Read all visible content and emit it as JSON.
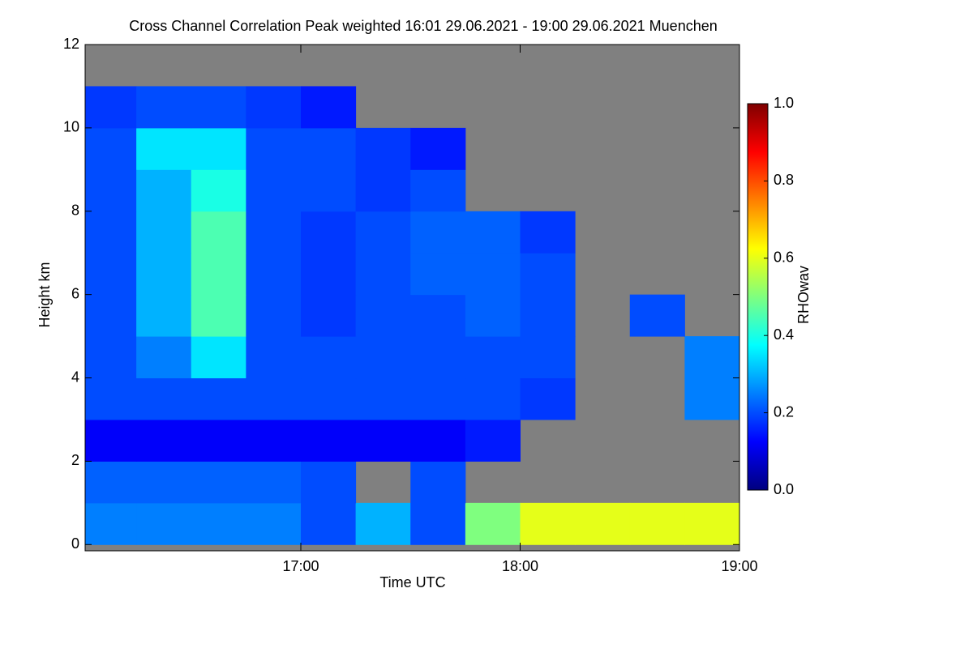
{
  "chart_data": {
    "type": "heatmap",
    "title": "Cross Channel Correlation Peak weighted   16:01 29.06.2021 - 19:00 29.06.2021 Muenchen",
    "x_label": "Time UTC",
    "y_label": "Height km",
    "colorbar_label": "RHOwav",
    "xlim": [
      16.0167,
      19.0
    ],
    "ylim": [
      -0.15,
      12
    ],
    "xticks": [
      {
        "value": 17,
        "label": "17:00"
      },
      {
        "value": 18,
        "label": "18:00"
      },
      {
        "value": 19,
        "label": "19:00"
      }
    ],
    "yticks": [
      0,
      2,
      4,
      6,
      8,
      10,
      12
    ],
    "clim": [
      0,
      1
    ],
    "cticks": [
      {
        "value": 0,
        "label": "0.0"
      },
      {
        "value": 0.2,
        "label": "0.2"
      },
      {
        "value": 0.4,
        "label": "0.4"
      },
      {
        "value": 0.6,
        "label": "0.6"
      },
      {
        "value": 0.8,
        "label": "0.8"
      },
      {
        "value": 1,
        "label": "1.0"
      }
    ],
    "colorscale": [
      "#00007f",
      "#0000ff",
      "#007fff",
      "#00ffff",
      "#7fff7f",
      "#ffff00",
      "#ff7f00",
      "#ff0000",
      "#7f0000"
    ],
    "missing_color": "#808080",
    "x_edges": [
      16.0167,
      16.25,
      16.5,
      16.75,
      17.0,
      17.25,
      17.5,
      17.75,
      18.0,
      18.25,
      18.5,
      18.75,
      19.0
    ],
    "y_edges": [
      0,
      1,
      2,
      3,
      4,
      5,
      6,
      7,
      8,
      9,
      10,
      11,
      12
    ],
    "z": [
      [
        0.25,
        0.25,
        0.25,
        0.25,
        0.2,
        0.3,
        0.2,
        0.5,
        0.6,
        0.6,
        0.6,
        0.6
      ],
      [
        0.22,
        0.22,
        0.22,
        0.22,
        0.2,
        null,
        0.2,
        null,
        null,
        null,
        null,
        null
      ],
      [
        0.12,
        0.12,
        0.12,
        0.12,
        0.12,
        0.12,
        0.12,
        0.15,
        null,
        null,
        null,
        null
      ],
      [
        0.2,
        0.2,
        0.2,
        0.2,
        0.2,
        0.2,
        0.2,
        0.2,
        0.18,
        null,
        null,
        0.25
      ],
      [
        0.2,
        0.25,
        0.35,
        0.2,
        0.2,
        0.2,
        0.2,
        0.2,
        0.2,
        null,
        null,
        0.25
      ],
      [
        0.2,
        0.3,
        0.45,
        0.2,
        0.18,
        0.2,
        0.2,
        0.22,
        0.2,
        null,
        0.2,
        null
      ],
      [
        0.2,
        0.3,
        0.45,
        0.2,
        0.18,
        0.2,
        0.22,
        0.22,
        0.2,
        null,
        null,
        null
      ],
      [
        0.2,
        0.3,
        0.45,
        0.2,
        0.18,
        0.2,
        0.22,
        0.22,
        0.18,
        null,
        null,
        null
      ],
      [
        0.2,
        0.3,
        0.4,
        0.2,
        0.2,
        0.18,
        0.2,
        null,
        null,
        null,
        null,
        null
      ],
      [
        0.2,
        0.35,
        0.35,
        0.2,
        0.2,
        0.18,
        0.15,
        null,
        null,
        null,
        null,
        null
      ],
      [
        0.18,
        0.2,
        0.2,
        0.18,
        0.15,
        null,
        null,
        null,
        null,
        null,
        null,
        null
      ],
      [
        null,
        null,
        null,
        null,
        null,
        null,
        null,
        null,
        null,
        null,
        null,
        null
      ]
    ]
  }
}
